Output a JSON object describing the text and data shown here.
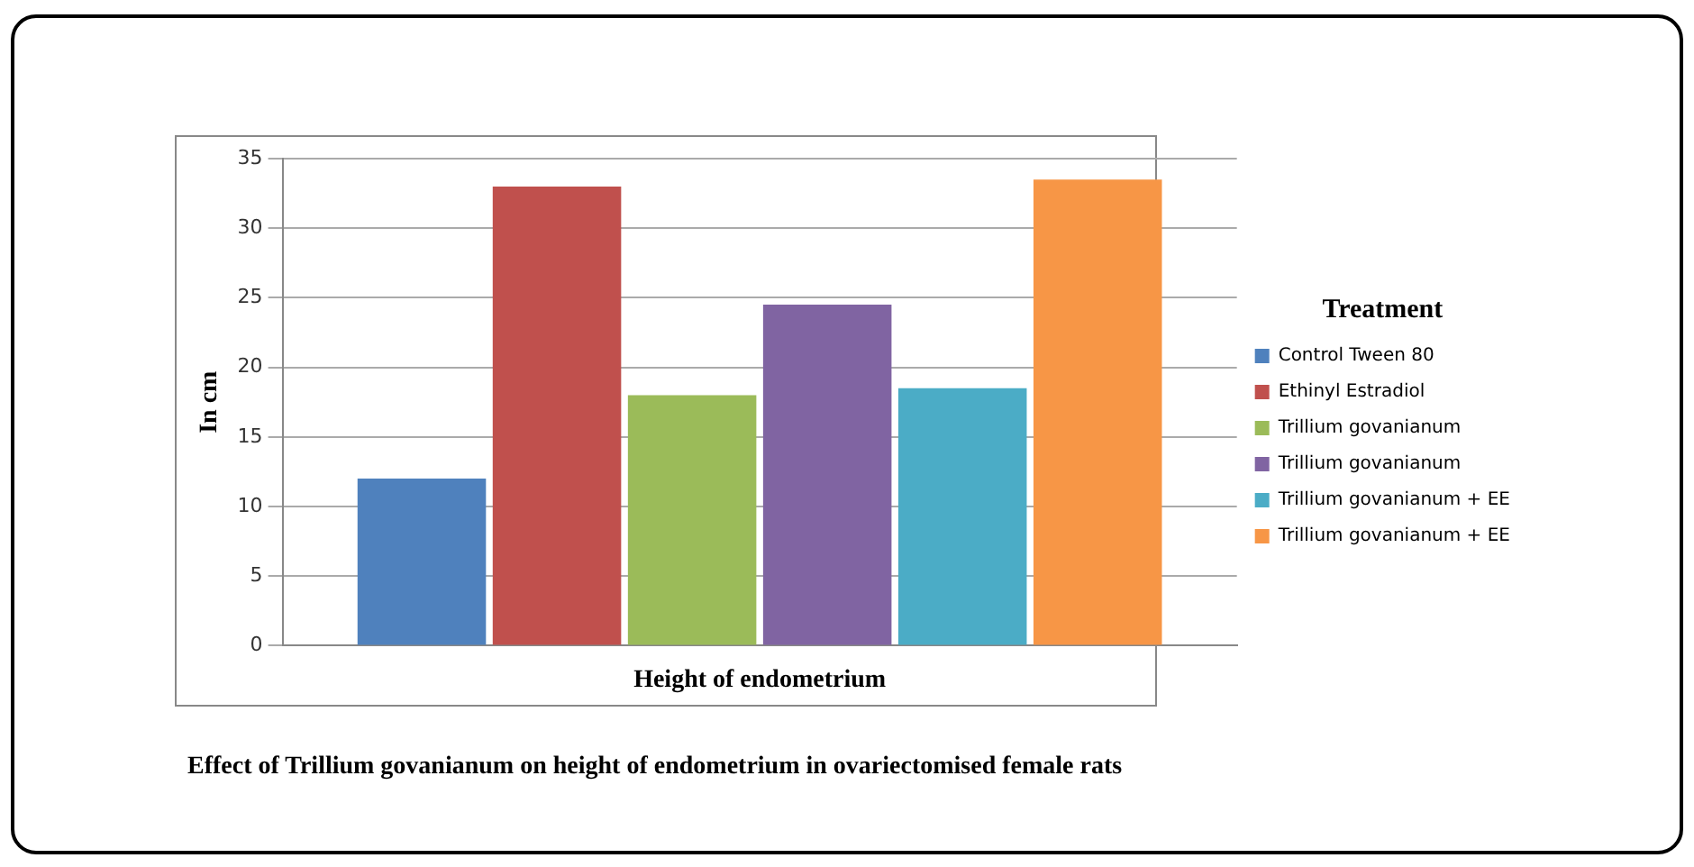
{
  "chart_data": {
    "type": "bar",
    "title": "Effect of Trillium govanianum on height of endometrium in ovariectomised female rats",
    "ylabel": "In cm",
    "legend_title": "Treatment",
    "categories": [
      "Height of endometrium"
    ],
    "series": [
      {
        "name": "Control Tween 80",
        "color": "#4f81bd",
        "values": [
          12
        ]
      },
      {
        "name": "Ethinyl Estradiol",
        "color": "#c0504d",
        "values": [
          33
        ]
      },
      {
        "name": "Trillium govanianum",
        "color": "#9bbb59",
        "values": [
          18
        ]
      },
      {
        "name": "Trillium govanianum",
        "color": "#8064a2",
        "values": [
          24.5
        ]
      },
      {
        "name": "Trillium govanianum + EE",
        "color": "#4bacc6",
        "values": [
          18.5
        ]
      },
      {
        "name": "Trillium govanianum + EE",
        "color": "#f79646",
        "values": [
          33.5
        ]
      }
    ],
    "ylim": [
      0,
      35
    ],
    "yticks": [
      0,
      5,
      10,
      15,
      20,
      25,
      30,
      35
    ],
    "grid": "y",
    "legend": "right"
  }
}
